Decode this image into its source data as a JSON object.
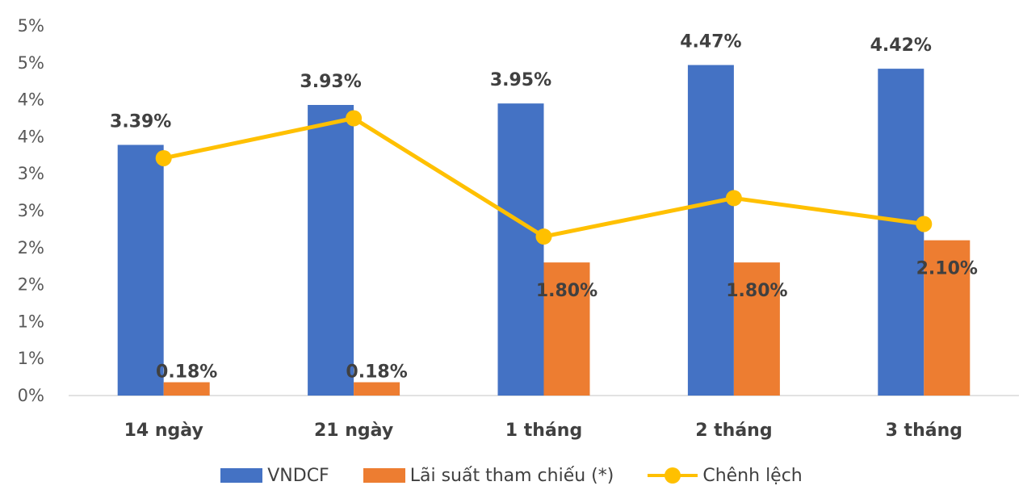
{
  "chart_data": {
    "type": "bar",
    "categories": [
      "14 ngày",
      "21 ngày",
      "1 tháng",
      "2 tháng",
      "3 tháng"
    ],
    "y_tick_labels": [
      "0%",
      "1%",
      "1%",
      "2%",
      "2%",
      "3%",
      "3%",
      "4%",
      "4%",
      "5%",
      "5%"
    ],
    "ylim": [
      0,
      5
    ],
    "grid": false,
    "legend_position": "bottom",
    "series": [
      {
        "name": "VNDCF",
        "type": "bar",
        "color": "#4472C4",
        "values": [
          3.39,
          3.93,
          3.95,
          4.47,
          4.42
        ],
        "labels": [
          "3.39%",
          "3.93%",
          "3.95%",
          "4.47%",
          "4.42%"
        ]
      },
      {
        "name": "Lãi suất tham chiếu (*)",
        "type": "bar",
        "color": "#ED7D31",
        "values": [
          0.18,
          0.18,
          1.8,
          1.8,
          2.1
        ],
        "labels": [
          "0.18%",
          "0.18%",
          "1.80%",
          "1.80%",
          "2.10%"
        ]
      },
      {
        "name": "Chênh lệch",
        "type": "line",
        "marker": "circle",
        "color": "#FFC000",
        "values": [
          3.21,
          3.75,
          2.15,
          2.67,
          2.32
        ]
      }
    ]
  }
}
